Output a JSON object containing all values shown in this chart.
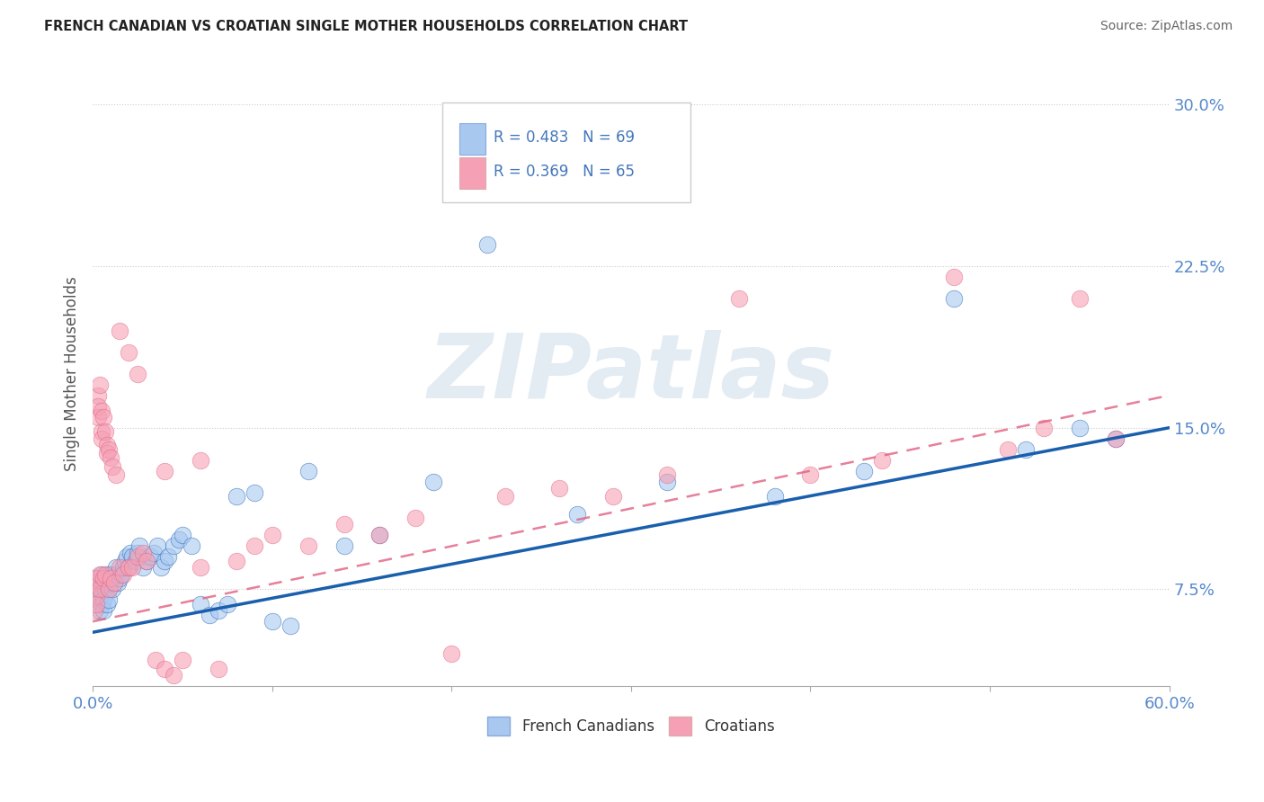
{
  "title": "FRENCH CANADIAN VS CROATIAN SINGLE MOTHER HOUSEHOLDS CORRELATION CHART",
  "source": "Source: ZipAtlas.com",
  "ylabel": "Single Mother Households",
  "xlim": [
    0.0,
    0.6
  ],
  "ylim": [
    0.03,
    0.32
  ],
  "ytick_labels": [
    "7.5%",
    "15.0%",
    "22.5%",
    "30.0%"
  ],
  "ytick_values": [
    0.075,
    0.15,
    0.225,
    0.3
  ],
  "french_R": 0.483,
  "french_N": 69,
  "croatian_R": 0.369,
  "croatian_N": 65,
  "french_color": "#a8c8f0",
  "croatian_color": "#f5a0b5",
  "french_line_color": "#1a5fad",
  "croatian_line_color": "#e06080",
  "watermark": "ZIPatlas",
  "french_line_x0": 0.0,
  "french_line_y0": 0.055,
  "french_line_x1": 0.6,
  "french_line_y1": 0.15,
  "croatian_line_x0": 0.0,
  "croatian_line_y0": 0.06,
  "croatian_line_x1": 0.6,
  "croatian_line_y1": 0.165,
  "french_x": [
    0.002,
    0.003,
    0.003,
    0.004,
    0.004,
    0.004,
    0.005,
    0.005,
    0.005,
    0.006,
    0.006,
    0.007,
    0.007,
    0.008,
    0.008,
    0.009,
    0.009,
    0.01,
    0.01,
    0.011,
    0.011,
    0.012,
    0.013,
    0.013,
    0.014,
    0.015,
    0.016,
    0.017,
    0.018,
    0.019,
    0.02,
    0.021,
    0.022,
    0.024,
    0.025,
    0.026,
    0.028,
    0.03,
    0.032,
    0.034,
    0.036,
    0.038,
    0.04,
    0.042,
    0.045,
    0.048,
    0.05,
    0.055,
    0.06,
    0.065,
    0.07,
    0.075,
    0.08,
    0.09,
    0.1,
    0.11,
    0.12,
    0.14,
    0.16,
    0.19,
    0.22,
    0.27,
    0.32,
    0.38,
    0.43,
    0.48,
    0.52,
    0.55,
    0.57
  ],
  "french_y": [
    0.08,
    0.075,
    0.07,
    0.078,
    0.065,
    0.072,
    0.073,
    0.068,
    0.082,
    0.07,
    0.065,
    0.075,
    0.08,
    0.068,
    0.082,
    0.075,
    0.07,
    0.078,
    0.082,
    0.075,
    0.08,
    0.078,
    0.082,
    0.085,
    0.078,
    0.08,
    0.082,
    0.085,
    0.088,
    0.09,
    0.085,
    0.092,
    0.09,
    0.088,
    0.092,
    0.095,
    0.085,
    0.088,
    0.09,
    0.092,
    0.095,
    0.085,
    0.088,
    0.09,
    0.095,
    0.098,
    0.1,
    0.095,
    0.068,
    0.063,
    0.065,
    0.068,
    0.118,
    0.12,
    0.06,
    0.058,
    0.13,
    0.095,
    0.1,
    0.125,
    0.235,
    0.11,
    0.125,
    0.118,
    0.13,
    0.21,
    0.14,
    0.15,
    0.145
  ],
  "croatian_x": [
    0.001,
    0.001,
    0.002,
    0.002,
    0.002,
    0.003,
    0.003,
    0.003,
    0.004,
    0.004,
    0.004,
    0.005,
    0.005,
    0.005,
    0.006,
    0.006,
    0.007,
    0.007,
    0.008,
    0.008,
    0.009,
    0.009,
    0.01,
    0.01,
    0.011,
    0.012,
    0.013,
    0.015,
    0.017,
    0.02,
    0.022,
    0.025,
    0.028,
    0.03,
    0.035,
    0.04,
    0.045,
    0.05,
    0.06,
    0.07,
    0.08,
    0.09,
    0.1,
    0.12,
    0.14,
    0.16,
    0.18,
    0.2,
    0.23,
    0.26,
    0.29,
    0.32,
    0.36,
    0.4,
    0.44,
    0.48,
    0.51,
    0.53,
    0.55,
    0.57,
    0.015,
    0.02,
    0.025,
    0.04,
    0.06
  ],
  "croatian_y": [
    0.078,
    0.065,
    0.072,
    0.08,
    0.068,
    0.165,
    0.16,
    0.155,
    0.075,
    0.082,
    0.17,
    0.158,
    0.148,
    0.145,
    0.08,
    0.155,
    0.082,
    0.148,
    0.142,
    0.138,
    0.075,
    0.14,
    0.08,
    0.136,
    0.132,
    0.078,
    0.128,
    0.085,
    0.082,
    0.085,
    0.085,
    0.09,
    0.092,
    0.088,
    0.042,
    0.038,
    0.035,
    0.042,
    0.085,
    0.038,
    0.088,
    0.095,
    0.1,
    0.095,
    0.105,
    0.1,
    0.108,
    0.045,
    0.118,
    0.122,
    0.118,
    0.128,
    0.21,
    0.128,
    0.135,
    0.22,
    0.14,
    0.15,
    0.21,
    0.145,
    0.195,
    0.185,
    0.175,
    0.13,
    0.135
  ]
}
